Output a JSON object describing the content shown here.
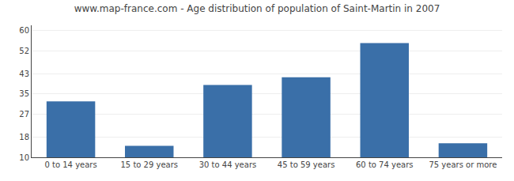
{
  "chart_data": {
    "type": "bar",
    "title": "www.map-france.com - Age distribution of population of Saint-Martin in 2007",
    "categories": [
      "0 to 14 years",
      "15 to 29 years",
      "30 to 44 years",
      "45 to 59 years",
      "60 to 74 years",
      "75 years or more"
    ],
    "values": [
      32.0,
      14.5,
      38.5,
      41.5,
      55.0,
      15.5
    ],
    "color": "#3a6fa8",
    "ylim": [
      10,
      62
    ],
    "yticks": [
      10,
      18,
      27,
      35,
      43,
      52,
      60
    ],
    "grid": true
  }
}
